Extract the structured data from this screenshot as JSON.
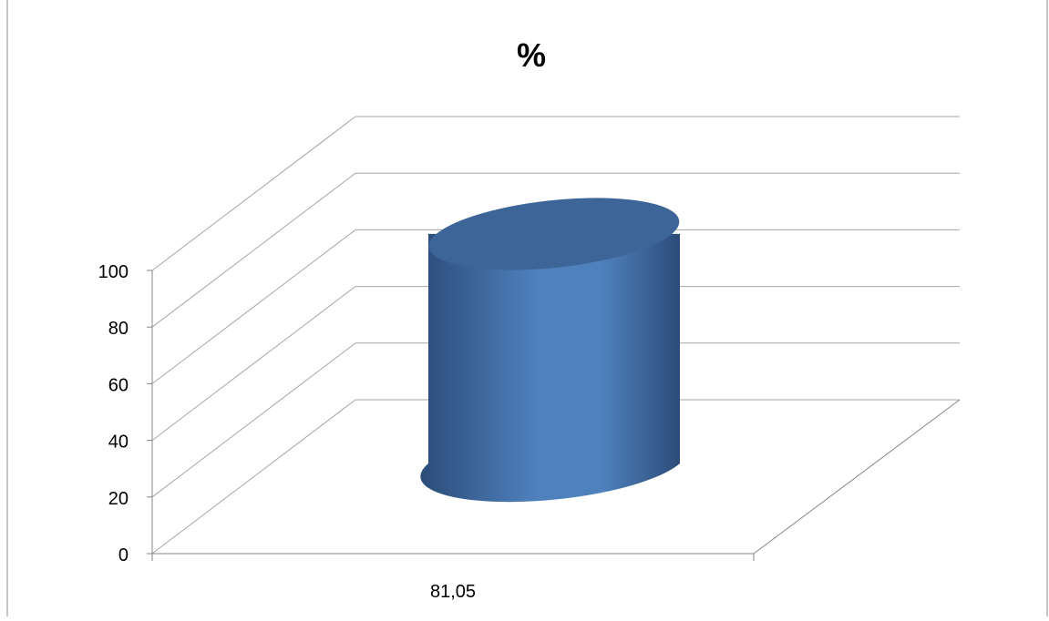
{
  "chart_data": {
    "type": "bar",
    "style": "3d-cylinder",
    "title": "%",
    "categories": [
      "81,05"
    ],
    "values": [
      81.05
    ],
    "ylim": [
      0,
      100
    ],
    "yticks": [
      "0",
      "20",
      "40",
      "60",
      "80",
      "100"
    ],
    "grid": true,
    "legend": "none",
    "colors": {
      "bar": "#4f81bd",
      "bar_dark": "#2c4c79",
      "bar_top": "#3d6598",
      "grid": "#a6a6a6",
      "axis": "#868686",
      "frame": "#8c8c8c"
    }
  }
}
